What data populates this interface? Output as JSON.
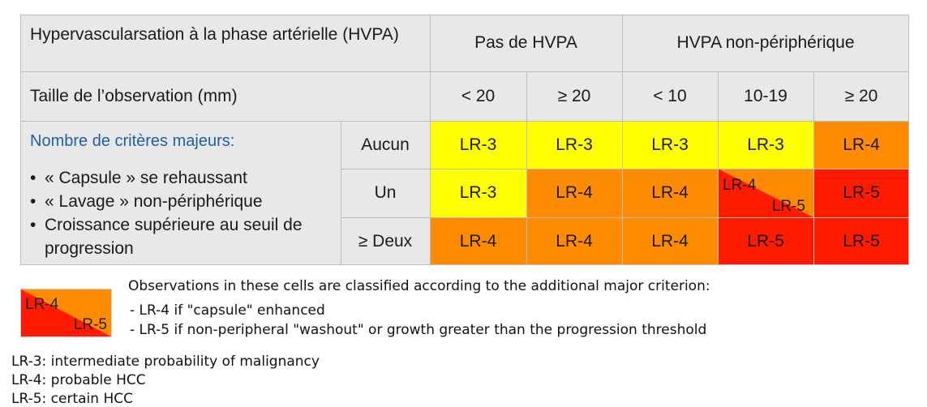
{
  "table": {
    "header_row1_label": "Hypervascularsation à la phase artérielle (HVPA)",
    "group_no_hvpa": "Pas de HVPA",
    "group_hvpa_nonperi": "HVPA non-périphérique",
    "header_row2_label": "Taille de l’observation (mm)",
    "sizes": [
      "< 20",
      "≥ 20",
      "< 10",
      "10-19",
      "≥ 20"
    ],
    "criteria_title": "Nombre de critères majeurs:",
    "criteria_items": [
      "« Capsule » se rehaussant",
      "« Lavage » non-périphérique",
      "Croissance supérieure au seuil de progression"
    ],
    "rows": [
      {
        "label": "Aucun",
        "cells": [
          "LR-3",
          "LR-3",
          "LR-3",
          "LR-3",
          "LR-4"
        ]
      },
      {
        "label": "Un",
        "cells": [
          "LR-3",
          "LR-4",
          "LR-4",
          "LR-4/LR-5",
          "LR-5"
        ]
      },
      {
        "label": "≥ Deux",
        "cells": [
          "LR-4",
          "LR-4",
          "LR-4",
          "LR-5",
          "LR-5"
        ]
      }
    ],
    "split_top": "LR-4",
    "split_bottom": "LR-5"
  },
  "legend": {
    "swatch_top": "LR-4",
    "swatch_bottom": "LR-5",
    "intro": "Observations in these cells are classified according to the additional major criterion:",
    "rule1": "- LR-4 if \"capsule\" enhanced",
    "rule2": "- LR-5 if non-peripheral \"washout\" or growth greater than the progression threshold"
  },
  "definitions": [
    "LR-3: intermediate probability of malignancy",
    "LR-4: probable HCC",
    "LR-5: certain HCC"
  ],
  "colors": {
    "yellow": "#ffff00",
    "orange": "#ff8c00",
    "red": "#ff1a00",
    "header_gray": "#e8e8e8",
    "criteria_blue": "#1f5fa8"
  }
}
